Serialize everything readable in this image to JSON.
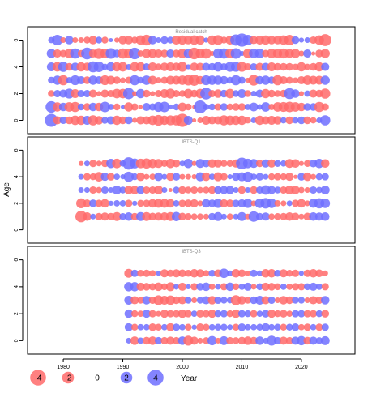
{
  "chart_data": {
    "type": "scatter",
    "subtype": "bubble-residuals",
    "ylabel": "Age",
    "xlabel": "Year",
    "x_ticks": [
      1980,
      1990,
      2000,
      2010,
      2020
    ],
    "xlim": [
      1974,
      2029
    ],
    "y_ticks": [
      0,
      2,
      4,
      6
    ],
    "ylim": [
      -1,
      7
    ],
    "colors": {
      "positive": "#6e6eff",
      "negative": "#ff6a6a"
    },
    "legend": {
      "position": "bottom",
      "values": [
        -4,
        -2,
        0,
        2,
        4
      ],
      "labels": [
        "-4",
        "-2",
        "0",
        "2",
        "4"
      ]
    },
    "panels": [
      {
        "title": "Residual catch",
        "years": [
          1978,
          2024
        ],
        "ages": [
          0,
          1,
          2,
          3,
          4,
          5,
          6
        ],
        "residuals": {
          "6": [
            0.4,
            1.5,
            -0.3,
            0.9,
            -0.3,
            -0.3,
            -0.5,
            -0.9,
            0.5,
            -0.5,
            0.1,
            -0.2,
            -0.9,
            -0.9,
            -0.5,
            -1.2,
            -1.6,
            0.9,
            0.3,
            0.7,
            0.5,
            -1.0,
            -1.1,
            -0.9,
            -1.2,
            -1.1,
            0.2,
            -1.1,
            -1.3,
            -0.5,
            -1.0,
            1.8,
            2.6,
            1.5,
            -0.8,
            -1.0,
            -1.1,
            -0.9,
            -0.9,
            -1.2,
            -1.5,
            0.7,
            0.2,
            0.3,
            -0.6,
            -1.2,
            -2.1
          ],
          "5": [
            1.1,
            -0.8,
            -0.6,
            -1.1,
            1.4,
            -0.5,
            2.0,
            -0.8,
            -1.6,
            -1.1,
            1.5,
            0.7,
            -1.4,
            -1.2,
            1.9,
            -0.4,
            -1.0,
            -1.0,
            -0.8,
            -0.7,
            0.8,
            -0.7,
            -1.2,
            1.1,
            -1.9,
            -1.1,
            -1.4,
            -0.2,
            1.3,
            1.4,
            -1.1,
            1.5,
            0.2,
            -1.2,
            1.2,
            1.2,
            -0.6,
            -1.2,
            -1.1,
            -1.3,
            -1.0,
            -1.1,
            -0.3,
            0.8,
            -0.1,
            -0.7,
            -1.1
          ],
          "4": [
            1.0,
            -1.2,
            1.4,
            -0.7,
            0.9,
            -1.1,
            -0.9,
            1.7,
            1.5,
            0.4,
            1.1,
            -1.1,
            -1.2,
            0.3,
            -1.2,
            -1.1,
            0.6,
            -1.0,
            -0.5,
            -0.9,
            -1.0,
            -0.9,
            -1.3,
            0.2,
            -0.9,
            -0.8,
            0.8,
            0.7,
            1.2,
            0.6,
            1.3,
            1.3,
            -1.3,
            -0.6,
            0.6,
            -0.8,
            0.8,
            -1.0,
            -0.7,
            -0.7,
            -0.7,
            -0.4,
            -1.1,
            -0.4,
            -0.7,
            -1.1,
            0.8
          ],
          "3": [
            0.5,
            1.1,
            -1.4,
            0.4,
            1.3,
            0.8,
            -0.7,
            1.1,
            0.8,
            -1.3,
            -1.0,
            -0.7,
            -0.3,
            -0.6,
            1.4,
            0.5,
            1.2,
            -1.0,
            -0.4,
            -0.6,
            -1.0,
            -1.0,
            -1.2,
            -1.5,
            -1.8,
            -0.9,
            1.3,
            1.2,
            1.1,
            0.9,
            0.5,
            1.4,
            0.6,
            -0.2,
            -1.6,
            0.9,
            1.1,
            0.7,
            -1.4,
            -0.8,
            -0.6,
            -0.3,
            -0.8,
            -1.2,
            -1.0,
            -1.0,
            1.1
          ],
          "2": [
            -0.5,
            0.6,
            0.8,
            1.3,
            -1.0,
            0.6,
            0.6,
            -0.8,
            -0.2,
            -0.8,
            -0.6,
            -1.2,
            -1.2,
            1.8,
            -0.2,
            1.1,
            -0.7,
            -0.2,
            -0.6,
            -1.0,
            -1.3,
            -0.6,
            -0.5,
            -1.2,
            -0.7,
            -1.2,
            2.0,
            -0.6,
            -0.9,
            0.7,
            -1.2,
            0.5,
            1.0,
            -0.5,
            0.3,
            0.8,
            -1.1,
            -0.7,
            -0.5,
            -0.7,
            1.7,
            0.9,
            -0.2,
            0.4,
            -0.8,
            -0.7,
            -1.4
          ],
          "1": [
            1.9,
            -1.1,
            0.9,
            -1.2,
            -1.4,
            0.5,
            -0.7,
            0.9,
            -0.9,
            1.5,
            0.4,
            -0.5,
            0.1,
            -1.1,
            -0.6,
            -0.1,
            0.8,
            0.6,
            1.3,
            1.5,
            0.2,
            0.5,
            -1.0,
            -0.5,
            -0.1,
            2.5,
            0.4,
            0.5,
            -0.6,
            0.7,
            -0.5,
            -0.7,
            -0.7,
            0.4,
            1.0,
            0.3,
            1.2,
            -0.4,
            -1.2,
            -1.3,
            -1.5,
            -1.2,
            -0.9,
            0.7,
            0.7,
            -1.4,
            -0.6
          ],
          "0": [
            2.5,
            -0.8,
            0.6,
            -0.7,
            -1.2,
            -1.1,
            1.0,
            -1.4,
            -0.9,
            0.5,
            0.8,
            -1.1,
            -0.7,
            0.7,
            -0.2,
            -0.8,
            -0.8,
            -1.2,
            -1.6,
            -1.1,
            -1.3,
            -1.4,
            -2.6,
            1.0,
            -0.1,
            -0.3,
            -1.0,
            -0.8,
            -0.8,
            -1.4,
            -1.2,
            -1.1,
            -1.1,
            -0.4,
            0.3,
            -1.1,
            -0.8,
            -1.0,
            -0.9,
            0.4,
            -0.7,
            0.4,
            0.7,
            -0.7,
            -0.4,
            0.3,
            1.4
          ]
        }
      },
      {
        "title": "IBTS-Q1",
        "years": [
          1983,
          2024
        ],
        "ages": [
          1,
          2,
          3,
          4,
          5
        ],
        "residuals": {
          "5": [
            -0.2,
            0.3,
            -0.6,
            -0.3,
            -0.6,
            1.1,
            -1.2,
            0.4,
            2.2,
            1.3,
            -1.2,
            -1.4,
            -1.1,
            -1.0,
            -0.5,
            -1.1,
            -0.7,
            0.3,
            1.1,
            -0.2,
            1.0,
            0.7,
            -0.9,
            -0.8,
            -0.5,
            -0.5,
            -0.8,
            2.0,
            1.2,
            1.0,
            -0.6,
            0.8,
            -0.8,
            0.5,
            0.4,
            -1.0,
            -0.9,
            -0.2,
            -0.5,
            0.7,
            1.1,
            -0.9
          ],
          "4": [
            0.3,
            -0.6,
            -0.5,
            -1.2,
            0.8,
            -0.7,
            0.4,
            0.2,
            1.4,
            0.5,
            -0.9,
            -0.3,
            -0.4,
            0.9,
            0.3,
            -0.8,
            0.7,
            -0.3,
            -0.3,
            -0.2,
            1.0,
            -0.9,
            0.4,
            -1.0,
            -0.6,
            0.2,
            0.8,
            1.0,
            1.4,
            0.4,
            0.7,
            0.3,
            -0.5,
            -0.6,
            -0.5,
            -0.8,
            -0.1,
            0.7,
            -0.9,
            -0.3,
            0.5,
            0.6
          ],
          "3": [
            0.3,
            0.3,
            -0.6,
            -0.4,
            0.6,
            0.3,
            1.0,
            0.5,
            -0.9,
            -0.9,
            0.8,
            -0.6,
            -0.6,
            -1.0,
            0.3,
            -0.1,
            0.5,
            -0.7,
            -0.5,
            -0.6,
            -0.4,
            -0.5,
            -0.7,
            0.7,
            0.8,
            0.9,
            0.3,
            -0.7,
            0.3,
            -0.7,
            0.6,
            1.2,
            0.8,
            0.5,
            -0.6,
            -1.0,
            -0.9,
            -0.4,
            -0.3,
            0.6,
            0.4,
            1.0
          ],
          "2": [
            -1.3,
            -0.7,
            0.7,
            -0.6,
            -0.9,
            0.2,
            0.4,
            0.4,
            -0.6,
            0.2,
            -0.5,
            -0.6,
            -0.9,
            -1.0,
            -1.0,
            -0.9,
            0.4,
            -0.6,
            -0.7,
            -0.8,
            -0.3,
            0.9,
            0.7,
            1.1,
            -0.8,
            -0.7,
            0.6,
            0.8,
            1.1,
            -0.3,
            1.2,
            1.5,
            1.2,
            -0.4,
            -0.3,
            0.3,
            -0.6,
            -0.9,
            -0.3,
            1.0,
            1.4,
            1.2
          ],
          "1": [
            -1.9,
            -0.9,
            0.3,
            -0.6,
            -0.8,
            -0.6,
            -1.0,
            0.5,
            0.9,
            -0.6,
            1.0,
            -1.0,
            -0.7,
            -0.8,
            -0.9,
            -1.0,
            1.1,
            -0.7,
            -0.5,
            -0.4,
            -0.4,
            -0.3,
            0.6,
            1.0,
            0.3,
            -0.4,
            0.3,
            1.0,
            -0.3,
            1.5,
            0.6,
            0.8,
            -0.4,
            -0.5,
            -0.6,
            -0.9,
            -0.7,
            -0.3,
            -0.7,
            0.9,
            0.8,
            0.9
          ]
        }
      },
      {
        "title": "IBTS-Q3",
        "years": [
          1991,
          2024
        ],
        "ages": [
          0,
          1,
          2,
          3,
          4,
          5
        ],
        "residuals": {
          "5": [
            -1.0,
            0.6,
            -0.5,
            -0.6,
            -0.4,
            0.2,
            -0.8,
            -0.6,
            -0.8,
            -0.7,
            -0.5,
            -0.9,
            -0.8,
            -0.4,
            0.5,
            -0.7,
            1.2,
            0.3,
            -0.9,
            -0.7,
            -0.2,
            0.6,
            0.3,
            -0.9,
            -0.9,
            0.5,
            -0.8,
            -0.5,
            -0.6,
            0.2,
            -0.6,
            -0.9,
            -0.7,
            -0.3
          ],
          "4": [
            1.1,
            1.1,
            -0.8,
            -0.7,
            -0.6,
            -0.9,
            -0.5,
            -1.0,
            0.3,
            -0.8,
            0.2,
            -0.6,
            0.7,
            0.9,
            -0.4,
            0.3,
            -0.6,
            0.9,
            -0.5,
            0.4,
            0.8,
            -0.3,
            0.5,
            -0.8,
            -0.7,
            -0.5,
            0.4,
            -0.4,
            -0.6,
            -0.6,
            0.5,
            0.8,
            0.4,
            -0.6
          ],
          "3": [
            1.0,
            -0.8,
            -0.5,
            0.9,
            -0.6,
            -1.3,
            -1.0,
            -1.2,
            -0.7,
            -0.8,
            0.5,
            -0.3,
            0.5,
            0.8,
            -0.9,
            0.6,
            0.5,
            0.4,
            -1.4,
            -0.9,
            -0.5,
            0.7,
            1.0,
            -0.8,
            0.6,
            -0.3,
            -0.9,
            -0.7,
            0.5,
            0.5,
            -0.3,
            -0.8,
            -0.6,
            0.9
          ],
          "2": [
            0.9,
            -0.5,
            -0.4,
            0.8,
            -0.6,
            -0.3,
            -0.8,
            -0.6,
            -0.6,
            -0.9,
            -0.6,
            0.4,
            -0.7,
            -0.6,
            -0.8,
            0.5,
            0.6,
            -0.5,
            -0.9,
            0.6,
            0.5,
            -0.6,
            0.4,
            0.7,
            -0.8,
            -0.5,
            -0.7,
            -0.4,
            0.6,
            0.6,
            -0.6,
            -0.6,
            0.5,
            -0.7
          ],
          "1": [
            0.8,
            -0.5,
            0.4,
            0.4,
            -0.7,
            -0.5,
            0.4,
            -0.8,
            0.6,
            0.4,
            -0.5,
            0.2,
            -0.7,
            -0.5,
            0.4,
            0.5,
            0.5,
            0.3,
            -0.5,
            0.7,
            0.4,
            0.4,
            0.5,
            0.8,
            0.4,
            0.5,
            -0.5,
            0.5,
            0.7,
            -0.4,
            -0.6,
            0.4,
            -0.6,
            0.6
          ],
          "0": [
            0.3,
            -0.9,
            0.4,
            -0.7,
            -0.9,
            0.6,
            -0.6,
            -0.8,
            -0.6,
            0.9,
            -1.3,
            -0.8,
            -0.3,
            -0.5,
            1.1,
            -0.3,
            1.0,
            -0.6,
            -0.5,
            -0.7,
            -0.9,
            -0.7,
            0.9,
            0.3,
            1.3,
            0.6,
            -0.8,
            -0.6,
            0.8,
            1.1,
            -0.7,
            0.8,
            0.5,
            1.0
          ]
        }
      }
    ]
  }
}
